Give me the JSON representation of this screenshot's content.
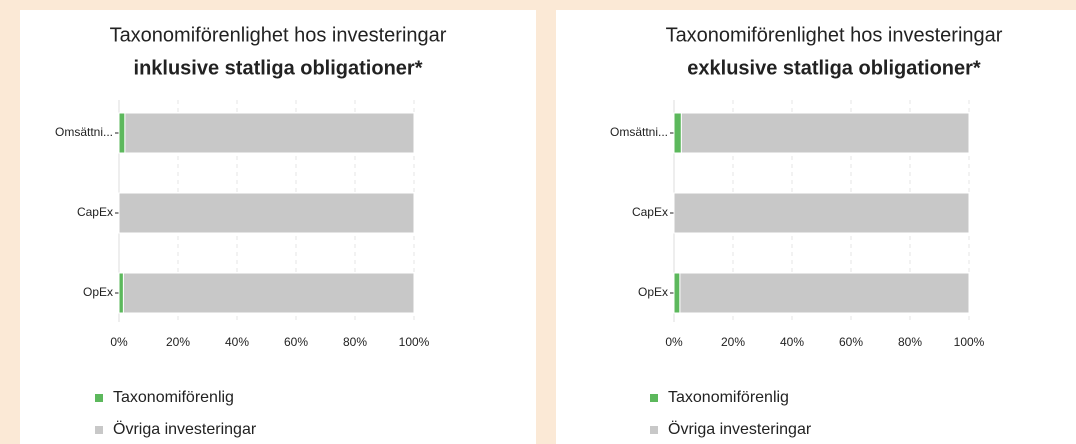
{
  "chart_data": [
    {
      "type": "bar",
      "orientation": "horizontal",
      "title": "Taxonomiförenlighet hos investeringar",
      "subtitle": "inklusive statliga obligationer*",
      "categories": [
        "Omsättni...",
        "CapEx",
        "OpEx"
      ],
      "series": [
        {
          "name": "Taxonomiförenlig",
          "color": "#5cb85c",
          "values": [
            2,
            0,
            1.5
          ]
        },
        {
          "name": "Övriga investeringar",
          "color": "#c8c8c8",
          "values": [
            98,
            100,
            98.5
          ]
        }
      ],
      "xlim": [
        0,
        100
      ],
      "xticks": [
        {
          "value": 0,
          "label": "0%"
        },
        {
          "value": 20,
          "label": "20%"
        },
        {
          "value": 40,
          "label": "40%"
        },
        {
          "value": 60,
          "label": "60%"
        },
        {
          "value": 80,
          "label": "80%"
        },
        {
          "value": 100,
          "label": "100%"
        }
      ],
      "grid": true,
      "legend": "bottom-left"
    },
    {
      "type": "bar",
      "orientation": "horizontal",
      "title": "Taxonomiförenlighet hos investeringar",
      "subtitle": "exklusive statliga obligationer*",
      "categories": [
        "Omsättni...",
        "CapEx",
        "OpEx"
      ],
      "series": [
        {
          "name": "Taxonomiförenlig",
          "color": "#5cb85c",
          "values": [
            2.5,
            0,
            2
          ]
        },
        {
          "name": "Övriga investeringar",
          "color": "#c8c8c8",
          "values": [
            97.5,
            100,
            98
          ]
        }
      ],
      "xlim": [
        0,
        100
      ],
      "xticks": [
        {
          "value": 0,
          "label": "0%"
        },
        {
          "value": 20,
          "label": "20%"
        },
        {
          "value": 40,
          "label": "40%"
        },
        {
          "value": 60,
          "label": "60%"
        },
        {
          "value": 80,
          "label": "80%"
        },
        {
          "value": 100,
          "label": "100%"
        }
      ],
      "grid": true,
      "legend": "bottom-left"
    }
  ]
}
